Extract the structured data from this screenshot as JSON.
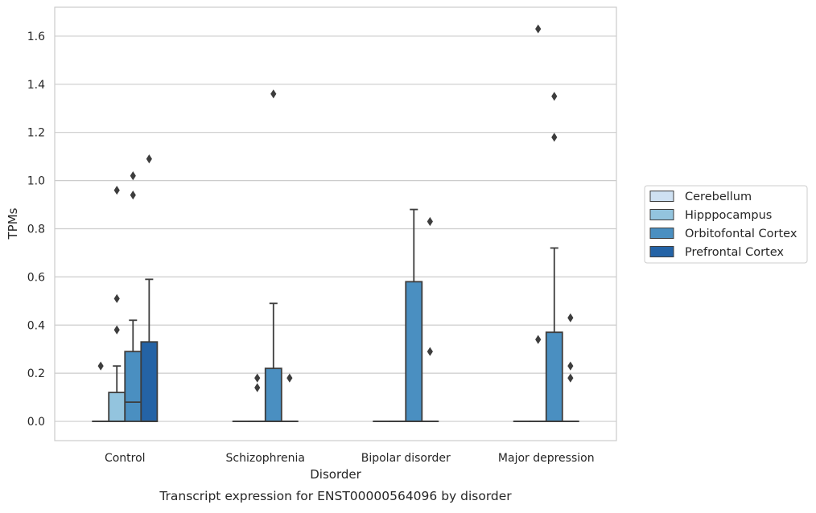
{
  "chart_data": {
    "type": "box",
    "title": "",
    "caption": "Transcript expression for ENST00000564096 by disorder",
    "xlabel": "Disorder",
    "ylabel": "TPMs",
    "ylim": [
      -0.08,
      1.72
    ],
    "yticks": [
      "0.0",
      "0.2",
      "0.4",
      "0.6",
      "0.8",
      "1.0",
      "1.2",
      "1.4",
      "1.6"
    ],
    "grid": "horizontal",
    "legend_position": "right",
    "categories": [
      "Control",
      "Schizophrenia",
      "Bipolar disorder",
      "Major depression"
    ],
    "series": [
      {
        "name": "Cerebellum",
        "color": "#cfe1f2",
        "boxes": [
          {
            "q1": 0,
            "median": 0,
            "q3": 0,
            "whisker_low": 0,
            "whisker_high": 0,
            "outliers": [
              0.23
            ]
          },
          {
            "q1": 0,
            "median": 0,
            "q3": 0,
            "whisker_low": 0,
            "whisker_high": 0,
            "outliers": []
          },
          {
            "q1": 0,
            "median": 0,
            "q3": 0,
            "whisker_low": 0,
            "whisker_high": 0,
            "outliers": []
          },
          {
            "q1": 0,
            "median": 0,
            "q3": 0,
            "whisker_low": 0,
            "whisker_high": 0,
            "outliers": []
          }
        ]
      },
      {
        "name": "Hipppocampus",
        "color": "#93c4de",
        "boxes": [
          {
            "q1": 0,
            "median": 0,
            "q3": 0.12,
            "whisker_low": 0,
            "whisker_high": 0.23,
            "outliers": [
              0.38,
              0.51,
              0.96
            ]
          },
          {
            "q1": 0,
            "median": 0,
            "q3": 0,
            "whisker_low": 0,
            "whisker_high": 0,
            "outliers": [
              0.14,
              0.18
            ]
          },
          {
            "q1": 0,
            "median": 0,
            "q3": 0,
            "whisker_low": 0,
            "whisker_high": 0,
            "outliers": []
          },
          {
            "q1": 0,
            "median": 0,
            "q3": 0,
            "whisker_low": 0,
            "whisker_high": 0,
            "outliers": [
              0.34,
              1.63
            ]
          }
        ]
      },
      {
        "name": "Orbitofontal Cortex",
        "color": "#4a8fc1",
        "boxes": [
          {
            "q1": 0,
            "median": 0.08,
            "q3": 0.29,
            "whisker_low": 0,
            "whisker_high": 0.42,
            "outliers": [
              0.94,
              1.02
            ]
          },
          {
            "q1": 0,
            "median": 0,
            "q3": 0.22,
            "whisker_low": 0,
            "whisker_high": 0.49,
            "outliers": [
              1.36
            ]
          },
          {
            "q1": 0,
            "median": 0,
            "q3": 0.58,
            "whisker_low": 0,
            "whisker_high": 0.88,
            "outliers": []
          },
          {
            "q1": 0,
            "median": 0,
            "q3": 0.37,
            "whisker_low": 0,
            "whisker_high": 0.72,
            "outliers": [
              1.18,
              1.35
            ]
          }
        ]
      },
      {
        "name": "Prefrontal Cortex",
        "color": "#2463a6",
        "boxes": [
          {
            "q1": 0,
            "median": 0,
            "q3": 0.33,
            "whisker_low": 0,
            "whisker_high": 0.59,
            "outliers": [
              1.09
            ]
          },
          {
            "q1": 0,
            "median": 0,
            "q3": 0,
            "whisker_low": 0,
            "whisker_high": 0,
            "outliers": [
              0.18
            ]
          },
          {
            "q1": 0,
            "median": 0,
            "q3": 0,
            "whisker_low": 0,
            "whisker_high": 0,
            "outliers": [
              0.29,
              0.83
            ]
          },
          {
            "q1": 0,
            "median": 0,
            "q3": 0,
            "whisker_low": 0,
            "whisker_high": 0,
            "outliers": [
              0.18,
              0.23,
              0.43
            ]
          }
        ]
      }
    ]
  }
}
